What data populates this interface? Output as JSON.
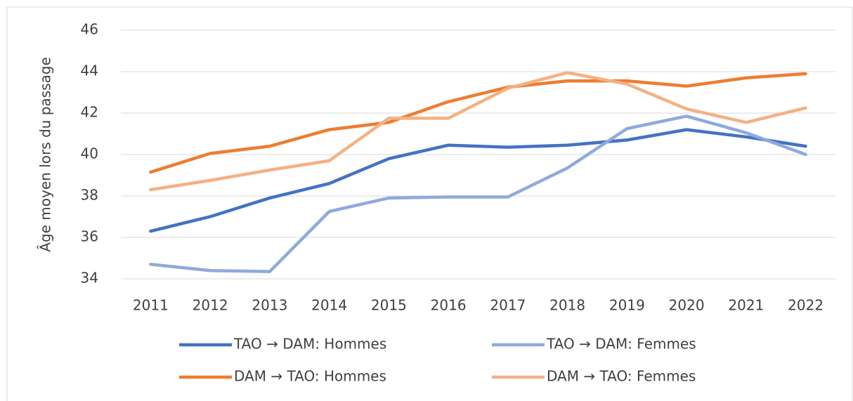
{
  "chart_data": {
    "type": "line",
    "y_label": "Âge moyen lors du passage",
    "categories": [
      "2011",
      "2012",
      "2013",
      "2014",
      "2015",
      "2016",
      "2017",
      "2018",
      "2019",
      "2020",
      "2021",
      "2022"
    ],
    "series": [
      {
        "name": "TAO → DAM: Hommes",
        "color": "#4472c4",
        "values": [
          36.3,
          37.0,
          37.9,
          38.6,
          39.8,
          40.45,
          40.35,
          40.45,
          40.7,
          41.2,
          40.85,
          40.4
        ]
      },
      {
        "name": "TAO → DAM: Femmes",
        "color": "#8faadc",
        "values": [
          34.7,
          34.4,
          34.35,
          37.25,
          37.9,
          37.95,
          37.95,
          39.35,
          41.25,
          41.85,
          41.05,
          40.0
        ]
      },
      {
        "name": "DAM → TAO: Hommes",
        "color": "#ed7d31",
        "values": [
          39.15,
          40.05,
          40.4,
          41.2,
          41.55,
          42.55,
          43.25,
          43.55,
          43.55,
          43.3,
          43.7,
          43.9
        ]
      },
      {
        "name": "DAM → TAO: Femmes",
        "color": "#f4b183",
        "values": [
          38.3,
          38.75,
          39.25,
          39.7,
          41.75,
          41.75,
          43.2,
          43.95,
          43.4,
          42.2,
          41.55,
          42.25
        ]
      }
    ],
    "ylim": [
      34,
      46
    ],
    "yticks": [
      34,
      36,
      38,
      40,
      42,
      44,
      46
    ],
    "grid": true,
    "legend": "bottom"
  }
}
